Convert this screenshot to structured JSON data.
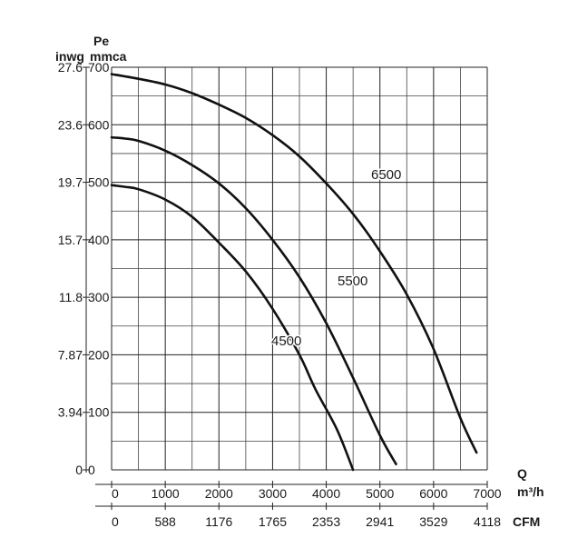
{
  "chart_data": {
    "type": "line",
    "title": "",
    "x_axis": {
      "label": "Q",
      "unit": "m³/h",
      "range": [
        0,
        7000
      ],
      "ticks": [
        0,
        1000,
        2000,
        3000,
        4000,
        5000,
        6000,
        7000
      ],
      "tick_labels": [
        "0",
        "1000",
        "2000",
        "3000",
        "4000",
        "5000",
        "6000",
        "7000"
      ],
      "minor_step": 500
    },
    "x_axis_secondary": {
      "label": "CFM",
      "tick_labels": [
        "0",
        "588",
        "1176",
        "1765",
        "2353",
        "2941",
        "3529",
        "4118"
      ]
    },
    "y_axis": {
      "label": "Pe",
      "unit": "mmca",
      "range": [
        0,
        700
      ],
      "ticks": [
        0,
        100,
        200,
        300,
        400,
        500,
        600,
        700
      ],
      "tick_labels": [
        "0",
        "100",
        "200",
        "300",
        "400",
        "500",
        "600",
        "700"
      ],
      "minor_step": 50
    },
    "y_axis_secondary": {
      "unit": "inwg",
      "tick_labels": [
        "0",
        "3.94",
        "7.87",
        "11.8",
        "15.7",
        "19.7",
        "23.6",
        "27.6"
      ]
    },
    "grid": true,
    "series": [
      {
        "name": "4500",
        "x": [
          0,
          250,
          500,
          1000,
          1500,
          2000,
          2500,
          3000,
          3500,
          3800,
          4200,
          4500
        ],
        "y": [
          495,
          492,
          488,
          470,
          440,
          395,
          345,
          280,
          200,
          140,
          70,
          0
        ]
      },
      {
        "name": "5500",
        "x": [
          0,
          250,
          500,
          1000,
          1500,
          2000,
          2500,
          3000,
          3500,
          4000,
          4500,
          5000,
          5300
        ],
        "y": [
          578,
          576,
          572,
          555,
          530,
          498,
          455,
          400,
          335,
          255,
          160,
          60,
          10
        ]
      },
      {
        "name": "6500",
        "x": [
          0,
          500,
          1000,
          1500,
          2000,
          2500,
          3000,
          3500,
          4000,
          4500,
          5000,
          5500,
          6000,
          6500,
          6800
        ],
        "y": [
          688,
          680,
          670,
          655,
          635,
          612,
          582,
          545,
          498,
          445,
          380,
          305,
          210,
          90,
          30
        ]
      }
    ]
  }
}
